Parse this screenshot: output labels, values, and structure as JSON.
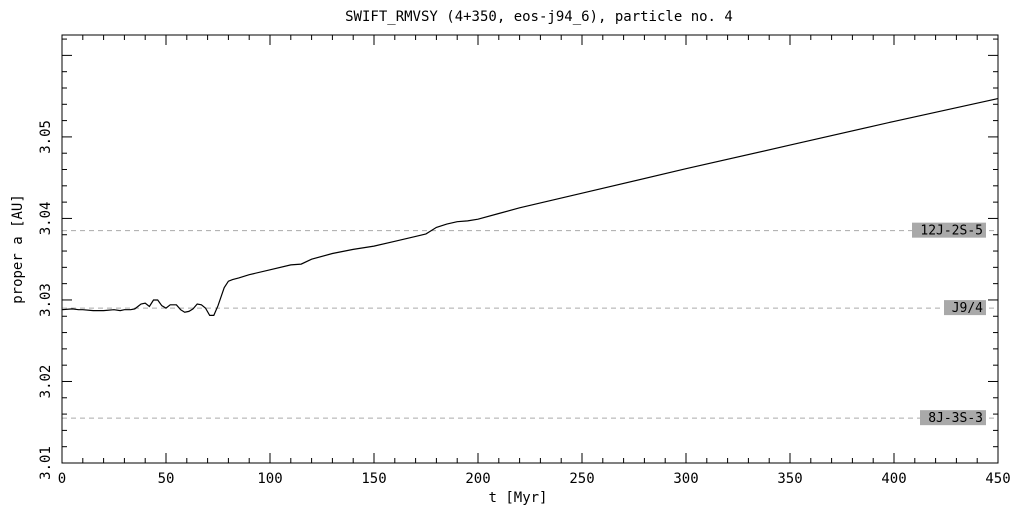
{
  "chart_data": {
    "type": "line",
    "title": "SWIFT_RMVSY (4+350, eos-j94_6), particle no. 4",
    "xlabel": "t [Myr]",
    "ylabel": "proper a [AU]",
    "xlim": [
      0,
      450
    ],
    "ylim": [
      3.01,
      3.0625
    ],
    "x_ticks": [
      0,
      50,
      100,
      150,
      200,
      250,
      300,
      350,
      400,
      450
    ],
    "x_tick_labels": [
      "0",
      "50",
      "100",
      "150",
      "200",
      "250",
      "300",
      "350",
      "400",
      "450"
    ],
    "y_ticks": [
      3.01,
      3.02,
      3.03,
      3.04,
      3.05
    ],
    "y_tick_labels": [
      "3.01",
      "3.02",
      "3.03",
      "3.04",
      "3.05"
    ],
    "grid": false,
    "line_color": "#000000",
    "series": [
      {
        "x": [
          0,
          5,
          8,
          10,
          15,
          20,
          25,
          28,
          30,
          33,
          35,
          38,
          40,
          42,
          44,
          46,
          48,
          50,
          52,
          55,
          57,
          59,
          61,
          63,
          65,
          67,
          69,
          71,
          73,
          75,
          78,
          80,
          82,
          85,
          90,
          100,
          110,
          115,
          120,
          130,
          140,
          150,
          160,
          170,
          175,
          180,
          185,
          190,
          195,
          200,
          210,
          220,
          250,
          300,
          350,
          400,
          450
        ],
        "values": [
          3.0288,
          3.0289,
          3.0288,
          3.0288,
          3.0287,
          3.0287,
          3.0288,
          3.0287,
          3.0288,
          3.0288,
          3.0289,
          3.0295,
          3.0296,
          3.0292,
          3.03,
          3.03,
          3.0293,
          3.029,
          3.0294,
          3.0294,
          3.0288,
          3.0285,
          3.0286,
          3.0289,
          3.0295,
          3.0294,
          3.029,
          3.0281,
          3.0281,
          3.0293,
          3.0315,
          3.0323,
          3.0325,
          3.0327,
          3.0331,
          3.0337,
          3.0343,
          3.0344,
          3.035,
          3.0357,
          3.0362,
          3.0366,
          3.0372,
          3.0378,
          3.0381,
          3.0389,
          3.0393,
          3.0396,
          3.0397,
          3.0399,
          3.0406,
          3.0413,
          3.0431,
          3.0461,
          3.049,
          3.0519,
          3.0547
        ]
      }
    ],
    "resonances": [
      {
        "label": "12J-2S-5",
        "a": 3.0385
      },
      {
        "label": "J9/4",
        "a": 3.029
      },
      {
        "label": "8J-3S-3",
        "a": 3.0155
      }
    ],
    "resonance_line_color": "#aaaaaa",
    "resonance_box_color": "#a9a9a9"
  }
}
